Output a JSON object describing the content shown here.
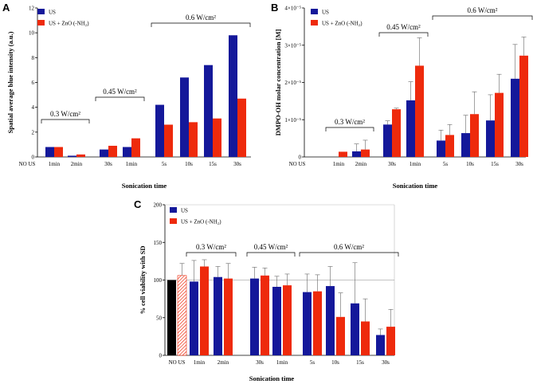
{
  "colors": {
    "us": "#14189a",
    "zno": "#ee2a0c",
    "ctrl": "#000000",
    "hatch": "#ee2a0c"
  },
  "chart_data": [
    {
      "id": "A",
      "type": "bar",
      "panel_label": "A",
      "ylabel": "Spatial average blue intensity (a.u.)",
      "xlabel": "Sonication time",
      "ylim": [
        0,
        12
      ],
      "yticks": [
        "0",
        "2",
        "4",
        "6",
        "8",
        "10",
        "12"
      ],
      "legend": [
        "US",
        "US + ZnO (-NH₂)"
      ],
      "groups": [
        {
          "label": "NO US",
          "us": 0,
          "zno": 0
        },
        {
          "label": "1min",
          "us": 0.8,
          "zno": 0.8
        },
        {
          "label": "2min",
          "us": 0.1,
          "zno": 0.2
        },
        {
          "label": "30s",
          "us": 0.6,
          "zno": 0.9
        },
        {
          "label": "1min",
          "us": 0.8,
          "zno": 1.5
        },
        {
          "label": "5s",
          "us": 4.2,
          "zno": 2.6
        },
        {
          "label": "10s",
          "us": 6.4,
          "zno": 2.8
        },
        {
          "label": "15s",
          "us": 7.4,
          "zno": 3.1
        },
        {
          "label": "30s",
          "us": 9.8,
          "zno": 4.7
        }
      ],
      "brackets": [
        {
          "label": "0.3 W/cm²",
          "from": 1,
          "to": 2
        },
        {
          "label": "0.45 W/cm²",
          "from": 3,
          "to": 4
        },
        {
          "label": "0.6 W/cm²",
          "from": 5,
          "to": 8
        }
      ]
    },
    {
      "id": "B",
      "type": "bar",
      "panel_label": "B",
      "ylabel": "DMPO-OH molar concentration [M]",
      "xlabel": "Sonication time",
      "ylim": [
        0,
        4e-05
      ],
      "yticks": [
        "0",
        "1×10⁻⁵",
        "2×10⁻⁵",
        "3×10⁻⁵",
        "4×10⁻⁵"
      ],
      "legend": [
        "US",
        "US + ZnO (-NH₂)"
      ],
      "groups": [
        {
          "label": "NO US",
          "us": 0,
          "zno": 0,
          "us_err": 0,
          "zno_err": 0
        },
        {
          "label": "1min",
          "us": 0,
          "zno": 1.4e-06,
          "us_err": 0,
          "zno_err": 0
        },
        {
          "label": "2min",
          "us": 1.5e-06,
          "zno": 2e-06,
          "us_err": 2e-06,
          "zno_err": 2.5e-06
        },
        {
          "label": "30s",
          "us": 8.7e-06,
          "zno": 1.28e-05,
          "us_err": 1e-06,
          "zno_err": 3e-07
        },
        {
          "label": "1min",
          "us": 1.52e-05,
          "zno": 2.45e-05,
          "us_err": 5e-06,
          "zno_err": 7.5e-06
        },
        {
          "label": "5s",
          "us": 4.4e-06,
          "zno": 5.9e-06,
          "us_err": 2.8e-06,
          "zno_err": 2.8e-06
        },
        {
          "label": "10s",
          "us": 6.4e-06,
          "zno": 1.15e-05,
          "us_err": 4.8e-06,
          "zno_err": 6e-06
        },
        {
          "label": "15s",
          "us": 9.8e-06,
          "zno": 1.72e-05,
          "us_err": 6.9e-06,
          "zno_err": 5e-06
        },
        {
          "label": "30s",
          "us": 2.1e-05,
          "zno": 2.72e-05,
          "us_err": 9.2e-06,
          "zno_err": 5e-06
        }
      ],
      "brackets": [
        {
          "label": "0.3 W/cm²",
          "from": 1,
          "to": 2
        },
        {
          "label": "0.45 W/cm²",
          "from": 3,
          "to": 4
        },
        {
          "label": "0.6 W/cm²",
          "from": 5,
          "to": 8
        }
      ]
    },
    {
      "id": "C",
      "type": "bar",
      "panel_label": "C",
      "ylabel": "% cell viability with SD",
      "xlabel": "Sonication time",
      "ylim": [
        0,
        200
      ],
      "yticks": [
        "0",
        "50",
        "100",
        "150",
        "200"
      ],
      "reference_line": 100,
      "legend": [
        "US",
        "US + ZnO (-NH₂)"
      ],
      "groups": [
        {
          "label": "NO US",
          "us": 100,
          "zno": 106,
          "us_err": 0,
          "zno_err": 16
        },
        {
          "label": "1min",
          "us": 98,
          "zno": 118,
          "us_err": 28,
          "zno_err": 9
        },
        {
          "label": "2min",
          "us": 104,
          "zno": 102,
          "us_err": 14,
          "zno_err": 20
        },
        {
          "label": "30s",
          "us": 102,
          "zno": 106,
          "us_err": 15,
          "zno_err": 10
        },
        {
          "label": "1min",
          "us": 91,
          "zno": 93,
          "us_err": 14,
          "zno_err": 15
        },
        {
          "label": "5s",
          "us": 84,
          "zno": 85,
          "us_err": 24,
          "zno_err": 22
        },
        {
          "label": "10s",
          "us": 92,
          "zno": 51,
          "us_err": 26,
          "zno_err": 32
        },
        {
          "label": "15s",
          "us": 69,
          "zno": 45,
          "us_err": 54,
          "zno_err": 30
        },
        {
          "label": "30s",
          "us": 27,
          "zno": 38,
          "us_err": 8,
          "zno_err": 23
        }
      ],
      "brackets": [
        {
          "label": "0.3 W/cm²",
          "from": 1,
          "to": 2
        },
        {
          "label": "0.45 W/cm²",
          "from": 3,
          "to": 4
        },
        {
          "label": "0.6 W/cm²",
          "from": 5,
          "to": 8
        }
      ]
    }
  ]
}
